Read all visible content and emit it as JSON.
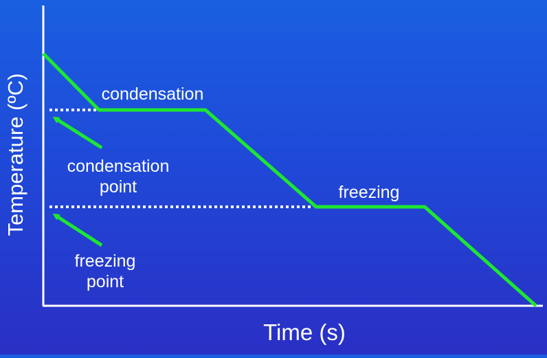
{
  "diagram": {
    "title": "",
    "x_axis_label": "Time (s)",
    "y_axis_label": "Temperature (ºC)",
    "curve_color": "#1ee632",
    "axis_color": "#ffffff",
    "background_color": "#1f4fd8",
    "phase_labels": {
      "condensation": "condensation",
      "freezing": "freezing"
    },
    "points": {
      "condensation_point": [
        "condensation",
        "point"
      ],
      "freezing_point": [
        "freezing",
        "point"
      ]
    }
  }
}
